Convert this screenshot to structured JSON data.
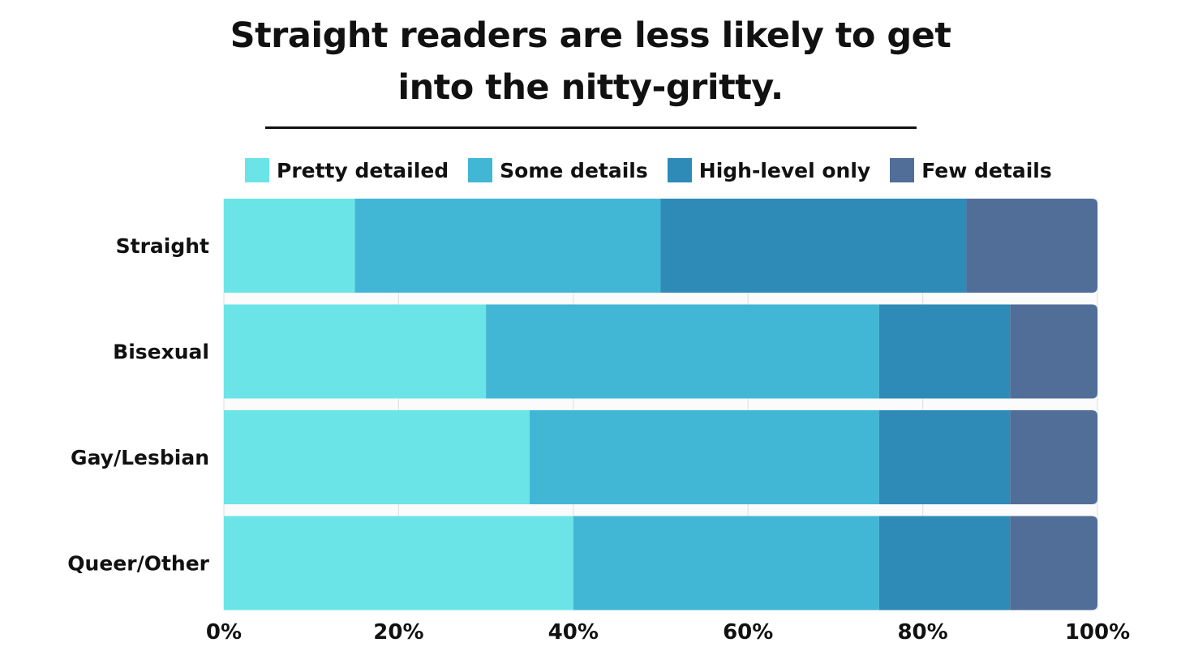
{
  "chart_data": {
    "type": "bar",
    "orientation": "horizontal",
    "stacked": true,
    "title": "Straight readers are less likely to get into the nitty-gritty.",
    "title_lines": [
      "Straight readers are less likely to get",
      "into the nitty-gritty."
    ],
    "categories": [
      "Straight",
      "Bisexual",
      "Gay/Lesbian",
      "Queer/Other"
    ],
    "series": [
      {
        "name": "Pretty detailed",
        "color": "#6BE4E8",
        "values": [
          15,
          30,
          35,
          40
        ]
      },
      {
        "name": "Some details",
        "color": "#42B7D5",
        "values": [
          35,
          45,
          40,
          35
        ]
      },
      {
        "name": "High-level only",
        "color": "#2E8BB8",
        "values": [
          35,
          15,
          15,
          15
        ]
      },
      {
        "name": "Few details",
        "color": "#506E98",
        "values": [
          15,
          10,
          10,
          10
        ]
      }
    ],
    "xlim": [
      0,
      100
    ],
    "x_ticks": [
      0,
      20,
      40,
      60,
      80,
      100
    ],
    "x_tick_labels": [
      "0%",
      "20%",
      "40%",
      "60%",
      "80%",
      "100%"
    ],
    "xlabel": "",
    "ylabel": "",
    "grid": true,
    "legend_position": "top"
  }
}
